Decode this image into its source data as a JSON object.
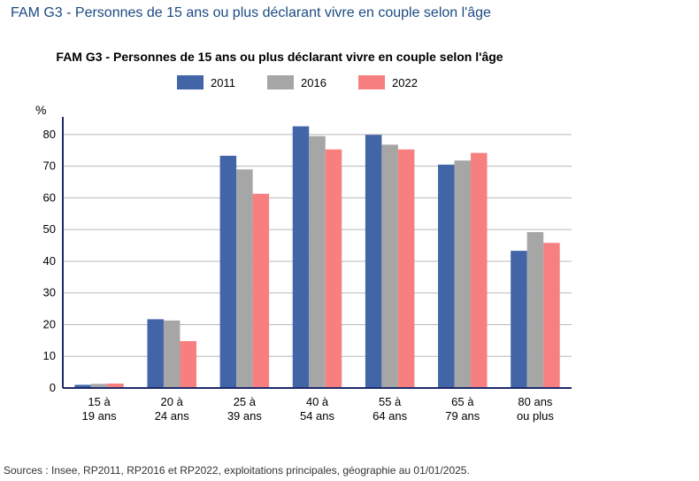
{
  "page": {
    "title": "FAM G3 - Personnes de 15 ans ou plus déclarant vivre en couple selon l'âge",
    "source": "Sources : Insee, RP2011, RP2016 et RP2022, exploitations principales, géographie au 01/01/2025."
  },
  "chart_data": {
    "type": "bar",
    "title": "FAM G3 - Personnes de 15 ans ou plus déclarant vivre en couple selon l'âge",
    "ylabel": "%",
    "xlabel": "",
    "ylim": [
      0,
      85
    ],
    "yticks": [
      0,
      10,
      20,
      30,
      40,
      50,
      60,
      70,
      80
    ],
    "grid": true,
    "legend_position": "top",
    "categories": [
      [
        "15 à",
        "19 ans"
      ],
      [
        "20 à",
        "24 ans"
      ],
      [
        "25 à",
        "39 ans"
      ],
      [
        "40 à",
        "54 ans"
      ],
      [
        "55 à",
        "64 ans"
      ],
      [
        "65 à",
        "79 ans"
      ],
      [
        "80 ans",
        "ou plus"
      ]
    ],
    "series": [
      {
        "name": "2011",
        "color": "#4265a8",
        "values": [
          1,
          21.7,
          73.3,
          82.6,
          79.9,
          70.5,
          43.3
        ]
      },
      {
        "name": "2016",
        "color": "#a6a6a6",
        "values": [
          1.3,
          21.3,
          69,
          79.5,
          76.8,
          71.8,
          49.2
        ]
      },
      {
        "name": "2022",
        "color": "#f77f80",
        "values": [
          1.4,
          14.8,
          61.3,
          75.3,
          75.3,
          74.2,
          45.8
        ]
      }
    ]
  }
}
